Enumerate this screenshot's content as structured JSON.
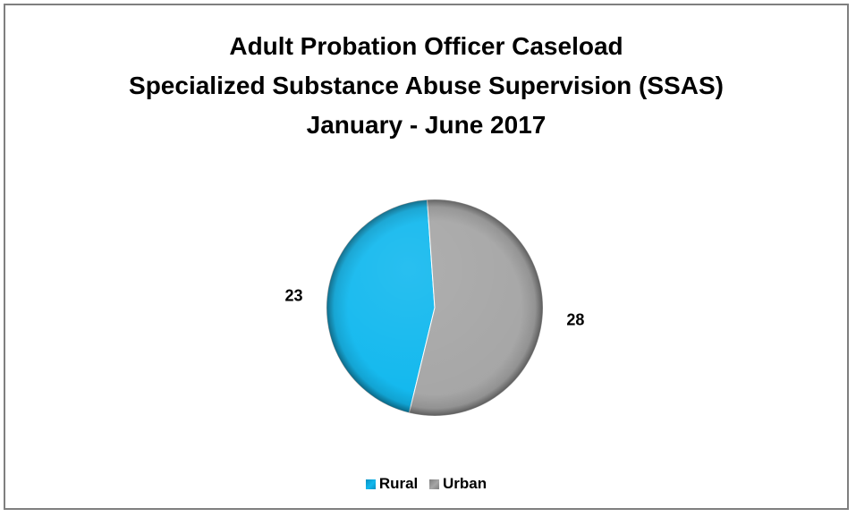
{
  "chart_data": {
    "type": "pie",
    "title": [
      "Adult Probation Officer Caseload",
      "Specialized Substance Abuse Supervision (SSAS)",
      "January - June 2017"
    ],
    "categories": [
      "Rural",
      "Urban"
    ],
    "values": [
      23,
      28
    ],
    "colors": [
      "#11b8ee",
      "#a6a6a6"
    ],
    "data_labels": [
      "23",
      "28"
    ],
    "legend_position": "bottom"
  }
}
